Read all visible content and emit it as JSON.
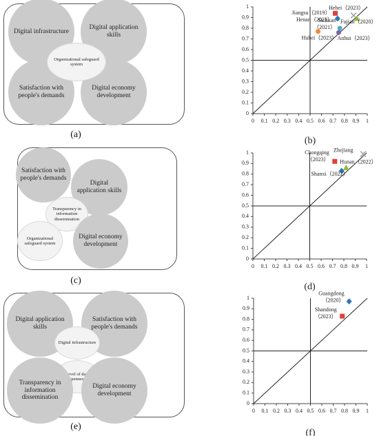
{
  "diagrams": [
    {
      "caption": "(a)",
      "nodes": [
        {
          "label": "Digital infrastructure"
        },
        {
          "label": "Digital application skills"
        },
        {
          "label": "Satisfaction with people's demands"
        },
        {
          "label": "Digital economy development"
        },
        {
          "label": "Organizational safeguard system"
        }
      ]
    },
    {
      "caption": "(c)",
      "nodes": [
        {
          "label": "Satisfaction with people's demands"
        },
        {
          "label": "Digital application skills"
        },
        {
          "label": "Transparency in information dissemination"
        },
        {
          "label": "Organizational safeguard system"
        },
        {
          "label": "Digital economy development"
        }
      ]
    },
    {
      "caption": "(e)",
      "nodes": [
        {
          "label": "Digital application skills"
        },
        {
          "label": "Satisfaction with people's demands"
        },
        {
          "label": "Digital infrastructure"
        },
        {
          "label": "Level of data openness"
        },
        {
          "label": "Transparency in information dissemination"
        },
        {
          "label": "Digital economy development"
        }
      ]
    }
  ],
  "chart_data": [
    {
      "type": "scatter",
      "caption": "(b)",
      "xlim": [
        0,
        1
      ],
      "ylim": [
        0,
        1
      ],
      "xticks": [
        0,
        0.1,
        0.2,
        0.3,
        0.4,
        0.5,
        0.6,
        0.7,
        0.8,
        0.9,
        1
      ],
      "yticks": [
        0,
        0.1,
        0.2,
        0.3,
        0.4,
        0.5,
        0.6,
        0.7,
        0.8,
        0.9,
        1
      ],
      "reference_lines": {
        "x": 0.5,
        "y": 0.5,
        "diagonal": true
      },
      "series": [
        {
          "label": [
            "Jiangsu（2019）"
          ],
          "color": "#e0403a",
          "marker": "square",
          "x": [
            0.72
          ],
          "values": [
            0.94
          ]
        },
        {
          "label": [
            "Hebei（2023）"
          ],
          "color": "#a0a0a0",
          "marker": "x",
          "x": [
            0.88
          ],
          "values": [
            0.92
          ]
        },
        {
          "label": [
            "Henan（2022）"
          ],
          "color": "#2e75b6",
          "marker": "diamond",
          "x": [
            0.74
          ],
          "values": [
            0.89
          ]
        },
        {
          "label": [
            "Fujian（2020）"
          ],
          "color": "#8cbf3f",
          "marker": "triangle",
          "x": [
            0.91
          ],
          "values": [
            0.89
          ]
        },
        {
          "label": [
            "Sichuan",
            "（2021）"
          ],
          "color": "#4bacc6",
          "marker": "circle",
          "x": [
            0.76
          ],
          "values": [
            0.8
          ]
        },
        {
          "label": [
            "Hubei（2023）"
          ],
          "color": "#f08c3a",
          "marker": "circle",
          "x": [
            0.57
          ],
          "values": [
            0.77
          ]
        },
        {
          "label": [
            "Anhui（2023）"
          ],
          "color": "#8064a2",
          "marker": "circle",
          "x": [
            0.75
          ],
          "values": [
            0.76
          ]
        }
      ]
    },
    {
      "type": "scatter",
      "caption": "(d)",
      "xlim": [
        0,
        1
      ],
      "ylim": [
        0,
        1
      ],
      "xticks": [
        0,
        0.1,
        0.2,
        0.3,
        0.4,
        0.5,
        0.6,
        0.7,
        0.8,
        0.9,
        1
      ],
      "yticks": [
        0,
        0.1,
        0.2,
        0.3,
        0.4,
        0.5,
        0.6,
        0.7,
        0.8,
        0.9,
        1
      ],
      "reference_lines": {
        "x": 0.5,
        "y": 0.5,
        "diagonal": true
      },
      "series": [
        {
          "label": [
            "Zhejiang"
          ],
          "color": "#a0a0a0",
          "marker": "x",
          "x": [
            0.97
          ],
          "values": [
            0.99
          ]
        },
        {
          "label": [
            "Chongqing",
            "（2023）"
          ],
          "color": "#e0403a",
          "marker": "square",
          "x": [
            0.72
          ],
          "values": [
            0.92
          ]
        },
        {
          "label": [
            "Hunan（2022）"
          ],
          "color": "#8cbf3f",
          "marker": "triangle",
          "x": [
            0.82
          ],
          "values": [
            0.86
          ]
        },
        {
          "label": [
            "Shanxi（2022）"
          ],
          "color": "#2e75b6",
          "marker": "diamond",
          "x": [
            0.78
          ],
          "values": [
            0.83
          ]
        }
      ]
    },
    {
      "type": "scatter",
      "caption": "(f)",
      "xlim": [
        0,
        1
      ],
      "ylim": [
        0,
        1
      ],
      "xticks": [
        0,
        0.1,
        0.2,
        0.3,
        0.4,
        0.5,
        0.6,
        0.7,
        0.8,
        0.9,
        1
      ],
      "yticks": [
        0,
        0.1,
        0.2,
        0.3,
        0.4,
        0.5,
        0.6,
        0.7,
        0.8,
        0.9,
        1
      ],
      "reference_lines": {
        "x": 0.5,
        "y": 0.5,
        "diagonal": true
      },
      "series": [
        {
          "label": [
            "Guangdong",
            "（2020）"
          ],
          "color": "#2e75b6",
          "marker": "diamond",
          "x": [
            0.84
          ],
          "values": [
            0.97
          ]
        },
        {
          "label": [
            "Shandong",
            "（2023）"
          ],
          "color": "#e0403a",
          "marker": "square",
          "x": [
            0.78
          ],
          "values": [
            0.83
          ]
        }
      ]
    }
  ]
}
